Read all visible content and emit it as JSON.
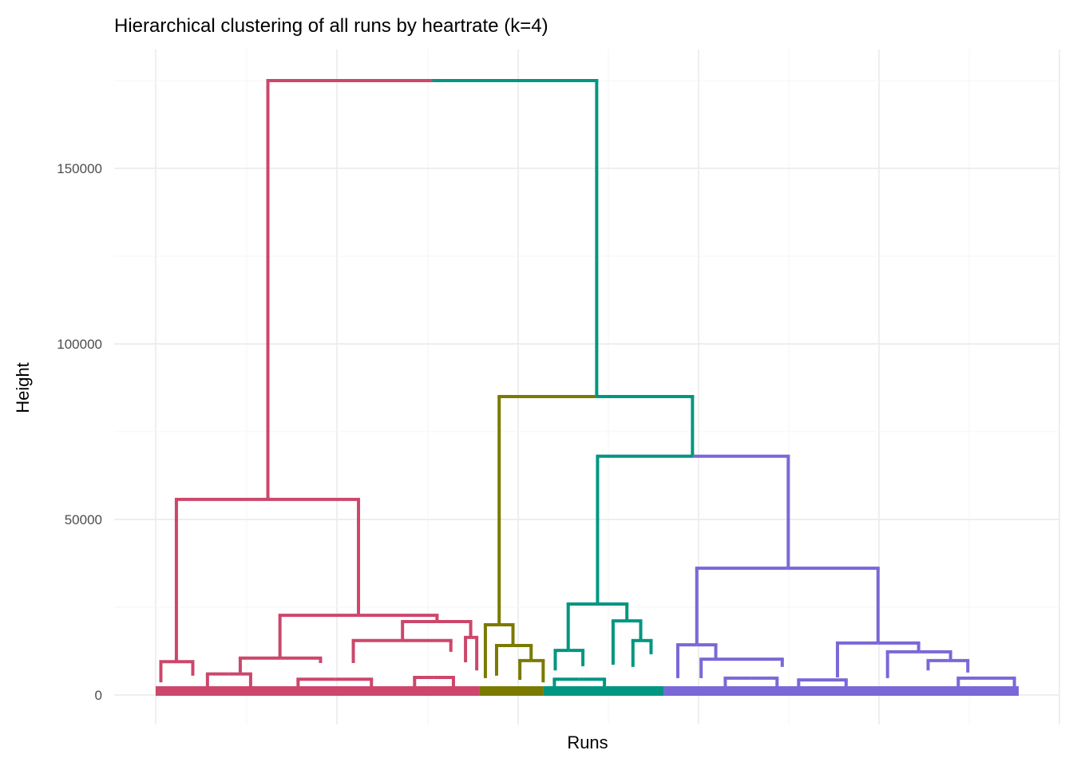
{
  "chart_data": {
    "type": "dendrogram",
    "title": "Hierarchical clustering of all runs by heartrate (k=4)",
    "xlabel": "Runs",
    "ylabel": "Height",
    "ylim": [
      0,
      175000
    ],
    "xlim": [
      0,
      1000
    ],
    "yticks": [
      0,
      50000,
      100000,
      150000
    ],
    "ytick_labels": [
      "0",
      "50000",
      "100000",
      "150000"
    ],
    "grid": true,
    "colors": {
      "c1": "#CC476B",
      "c2": "#7A7A00",
      "c3": "#009681",
      "c4": "#7A68D8"
    },
    "clusters": [
      {
        "color": "c1",
        "range": [
          0,
          375
        ]
      },
      {
        "color": "c2",
        "range": [
          375,
          449
        ]
      },
      {
        "color": "c3",
        "range": [
          449,
          589
        ]
      },
      {
        "color": "c4",
        "range": [
          589,
          1000
        ]
      }
    ],
    "merges": [
      {
        "x": [
          130,
          511
        ],
        "h": 175000,
        "child_h": [
          55700,
          85000
        ],
        "colors": [
          "c1",
          "c3"
        ]
      },
      {
        "x": [
          24,
          235
        ],
        "h": 55700,
        "child_h": [
          9500,
          22700
        ],
        "colors": [
          "c1",
          "c1"
        ]
      },
      {
        "x": [
          144,
          326
        ],
        "h": 22700,
        "child_h": [
          10500,
          20900
        ],
        "colors": [
          "c1",
          "c1"
        ]
      },
      {
        "x": [
          286,
          365
        ],
        "h": 20900,
        "child_h": [
          15500,
          16400
        ],
        "colors": [
          "c1",
          "c1"
        ]
      },
      {
        "x": [
          229,
          342
        ],
        "h": 15500,
        "child_h": [
          9100,
          12300
        ],
        "colors": [
          "c1",
          "c1"
        ]
      },
      {
        "x": [
          359,
          372
        ],
        "h": 16400,
        "child_h": [
          9300,
          7000
        ],
        "colors": [
          "c1",
          "c1"
        ]
      },
      {
        "x": [
          6,
          43
        ],
        "h": 9500,
        "child_h": [
          3600,
          5500
        ],
        "colors": [
          "c1",
          "c1"
        ]
      },
      {
        "x": [
          98,
          191
        ],
        "h": 10500,
        "child_h": [
          6400,
          9100
        ],
        "colors": [
          "c1",
          "c1"
        ]
      },
      {
        "x": [
          398,
          622
        ],
        "h": 85000,
        "child_h": [
          20000,
          68000
        ],
        "colors": [
          "c2",
          "c3"
        ]
      },
      {
        "x": [
          382,
          414
        ],
        "h": 20000,
        "child_h": [
          4800,
          14100
        ],
        "colors": [
          "c2",
          "c2"
        ]
      },
      {
        "x": [
          395,
          435
        ],
        "h": 14100,
        "child_h": [
          5500,
          9800
        ],
        "colors": [
          "c2",
          "c2"
        ]
      },
      {
        "x": [
          422,
          449
        ],
        "h": 9800,
        "child_h": [
          4300,
          3600
        ],
        "colors": [
          "c2",
          "c2"
        ]
      },
      {
        "x": [
          512,
          733
        ],
        "h": 68000,
        "child_h": [
          25900,
          36100
        ],
        "colors": [
          "c3",
          "c4"
        ]
      },
      {
        "x": [
          478,
          546
        ],
        "h": 25900,
        "child_h": [
          12700,
          21100
        ],
        "colors": [
          "c3",
          "c3"
        ]
      },
      {
        "x": [
          463,
          495
        ],
        "h": 12700,
        "child_h": [
          7000,
          8200
        ],
        "colors": [
          "c3",
          "c3"
        ]
      },
      {
        "x": [
          530,
          562
        ],
        "h": 21100,
        "child_h": [
          8600,
          15500
        ],
        "colors": [
          "c3",
          "c3"
        ]
      },
      {
        "x": [
          553,
          574
        ],
        "h": 15500,
        "child_h": [
          8000,
          11600
        ],
        "colors": [
          "c3",
          "c3"
        ]
      },
      {
        "x": [
          627,
          837
        ],
        "h": 36100,
        "child_h": [
          14300,
          14800
        ],
        "colors": [
          "c4",
          "c4"
        ]
      },
      {
        "x": [
          605,
          649
        ],
        "h": 14300,
        "child_h": [
          4800,
          10200
        ],
        "colors": [
          "c4",
          "c4"
        ]
      },
      {
        "x": [
          632,
          726
        ],
        "h": 10200,
        "child_h": [
          4800,
          8000
        ],
        "colors": [
          "c4",
          "c4"
        ]
      },
      {
        "x": [
          790,
          884
        ],
        "h": 14800,
        "child_h": [
          5000,
          12300
        ],
        "colors": [
          "c4",
          "c4"
        ]
      },
      {
        "x": [
          848,
          921
        ],
        "h": 12300,
        "child_h": [
          4800,
          9800
        ],
        "colors": [
          "c4",
          "c4"
        ]
      },
      {
        "x": [
          895,
          941
        ],
        "h": 9800,
        "child_h": [
          7000,
          6400
        ],
        "colors": [
          "c4",
          "c4"
        ]
      },
      {
        "x": [
          60,
          110
        ],
        "h": 6000,
        "child_h": [
          2500,
          2500
        ],
        "colors": [
          "c1",
          "c1"
        ]
      },
      {
        "x": [
          165,
          250
        ],
        "h": 4500,
        "child_h": [
          2500,
          2500
        ],
        "colors": [
          "c1",
          "c1"
        ]
      },
      {
        "x": [
          300,
          345
        ],
        "h": 5000,
        "child_h": [
          2500,
          2500
        ],
        "colors": [
          "c1",
          "c1"
        ]
      },
      {
        "x": [
          462,
          520
        ],
        "h": 4500,
        "child_h": [
          2500,
          2500
        ],
        "colors": [
          "c3",
          "c3"
        ]
      },
      {
        "x": [
          660,
          720
        ],
        "h": 4800,
        "child_h": [
          2500,
          2500
        ],
        "colors": [
          "c4",
          "c4"
        ]
      },
      {
        "x": [
          745,
          800
        ],
        "h": 4300,
        "child_h": [
          2500,
          2500
        ],
        "colors": [
          "c4",
          "c4"
        ]
      },
      {
        "x": [
          930,
          995
        ],
        "h": 4800,
        "child_h": [
          2500,
          2500
        ],
        "colors": [
          "c4",
          "c4"
        ]
      }
    ]
  }
}
